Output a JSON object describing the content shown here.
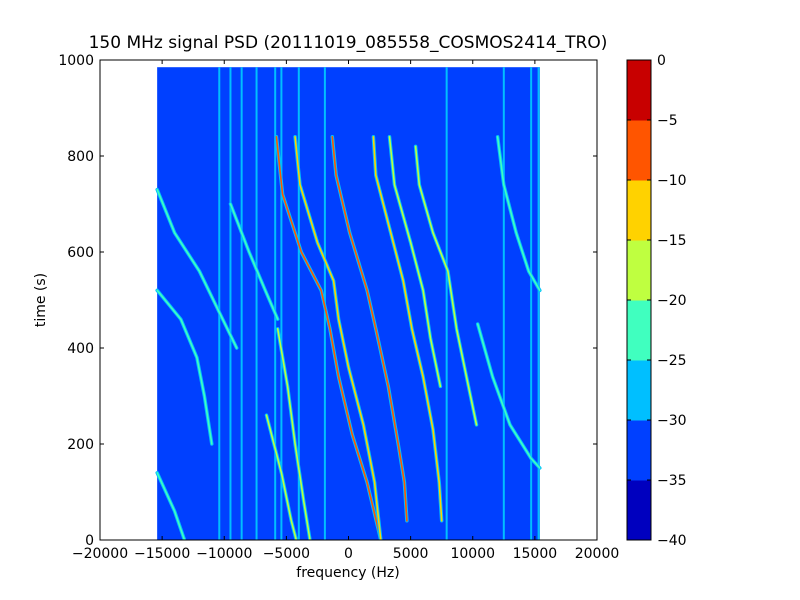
{
  "chart_data": {
    "type": "heatmap",
    "title": "150 MHz signal PSD (20111019_085558_COSMOS2414_TRO)",
    "xlabel": "frequency (Hz)",
    "ylabel": "time (s)",
    "xlim": [
      -20000,
      20000
    ],
    "ylim": [
      0,
      1000
    ],
    "x_ticks": [
      -20000,
      -15000,
      -10000,
      -5000,
      0,
      5000,
      10000,
      15000,
      20000
    ],
    "x_tick_labels": [
      "−20000",
      "−15000",
      "−10000",
      "−5000",
      "0",
      "5000",
      "10000",
      "15000",
      "20000"
    ],
    "y_ticks": [
      0,
      200,
      400,
      600,
      800,
      1000
    ],
    "y_tick_labels": [
      "0",
      "200",
      "400",
      "600",
      "800",
      "1000"
    ],
    "data_extent": {
      "x": [
        -15400,
        15400
      ],
      "y": [
        0,
        985
      ]
    },
    "background_level": -32.5,
    "colorbar": {
      "levels": [
        -40,
        -35,
        -30,
        -25,
        -20,
        -15,
        -10,
        -5,
        0
      ],
      "tick_labels": [
        "−40",
        "−35",
        "−30",
        "−25",
        "−20",
        "−15",
        "−10",
        "−5",
        "0"
      ],
      "colors": [
        "#0000bf",
        "#0040ff",
        "#00bfff",
        "#40ffbf",
        "#bfff40",
        "#ffd200",
        "#ff5500",
        "#c80000"
      ]
    },
    "vertical_lines": [
      {
        "x": -10400,
        "level": -27
      },
      {
        "x": -9500,
        "level": -28
      },
      {
        "x": -8600,
        "level": -28
      },
      {
        "x": -7400,
        "level": -29
      },
      {
        "x": -5900,
        "level": -27
      },
      {
        "x": -5400,
        "level": -28
      },
      {
        "x": -4000,
        "level": -29
      },
      {
        "x": -1900,
        "level": -26
      },
      {
        "x": 7900,
        "level": -28
      },
      {
        "x": 12500,
        "level": -30
      },
      {
        "x": 14700,
        "level": -28
      },
      {
        "x": 15300,
        "level": -27
      }
    ],
    "traces": [
      {
        "name": "",
        "level": -10,
        "points": [
          [
            -5800,
            840
          ],
          [
            -5300,
            720
          ],
          [
            -3800,
            600
          ],
          [
            -2200,
            520
          ],
          [
            -1500,
            440
          ],
          [
            -800,
            340
          ],
          [
            300,
            220
          ],
          [
            1500,
            120
          ],
          [
            2600,
            0
          ]
        ]
      },
      {
        "name": "",
        "level": -8,
        "points": [
          [
            -1300,
            840
          ],
          [
            -1000,
            760
          ],
          [
            100,
            640
          ],
          [
            1500,
            520
          ],
          [
            2200,
            440
          ],
          [
            3200,
            320
          ],
          [
            4000,
            200
          ],
          [
            4500,
            120
          ],
          [
            4700,
            40
          ]
        ]
      },
      {
        "name": "",
        "level": -15,
        "points": [
          [
            -4300,
            840
          ],
          [
            -3900,
            740
          ],
          [
            -2500,
            620
          ],
          [
            -1200,
            540
          ],
          [
            -800,
            460
          ],
          [
            0,
            360
          ],
          [
            1200,
            240
          ],
          [
            2100,
            120
          ],
          [
            2600,
            0
          ]
        ]
      },
      {
        "name": "",
        "level": -15,
        "points": [
          [
            2000,
            840
          ],
          [
            2200,
            760
          ],
          [
            3300,
            650
          ],
          [
            4400,
            540
          ],
          [
            5100,
            440
          ],
          [
            6000,
            340
          ],
          [
            6800,
            230
          ],
          [
            7300,
            120
          ],
          [
            7500,
            40
          ]
        ]
      },
      {
        "name": "",
        "level": -18,
        "points": [
          [
            3300,
            840
          ],
          [
            3700,
            740
          ],
          [
            5000,
            620
          ],
          [
            6000,
            520
          ],
          [
            6600,
            420
          ],
          [
            7400,
            320
          ]
        ]
      },
      {
        "name": "",
        "level": -17,
        "points": [
          [
            5400,
            820
          ],
          [
            5700,
            740
          ],
          [
            6800,
            640
          ],
          [
            8000,
            560
          ],
          [
            8700,
            440
          ],
          [
            9500,
            340
          ],
          [
            10300,
            240
          ]
        ]
      },
      {
        "name": "",
        "level": -20,
        "points": [
          [
            -5700,
            440
          ],
          [
            -4900,
            320
          ],
          [
            -4300,
            200
          ],
          [
            -3600,
            80
          ],
          [
            -3100,
            0
          ]
        ]
      },
      {
        "name": "",
        "level": -20,
        "points": [
          [
            -6600,
            260
          ],
          [
            -5400,
            140
          ],
          [
            -4600,
            40
          ],
          [
            -4200,
            0
          ]
        ]
      },
      {
        "name": "",
        "level": -22,
        "points": [
          [
            -15400,
            730
          ],
          [
            -14000,
            640
          ],
          [
            -12000,
            560
          ],
          [
            -10500,
            480
          ],
          [
            -9000,
            400
          ]
        ]
      },
      {
        "name": "",
        "level": -22,
        "points": [
          [
            -15400,
            520
          ],
          [
            -13500,
            460
          ],
          [
            -12200,
            380
          ],
          [
            -11600,
            300
          ],
          [
            -11000,
            200
          ]
        ]
      },
      {
        "name": "",
        "level": -22,
        "points": [
          [
            -15400,
            140
          ],
          [
            -14000,
            60
          ],
          [
            -13200,
            0
          ]
        ]
      },
      {
        "name": "",
        "level": -22,
        "points": [
          [
            12000,
            840
          ],
          [
            12500,
            740
          ],
          [
            13500,
            640
          ],
          [
            14500,
            560
          ],
          [
            15400,
            520
          ]
        ]
      },
      {
        "name": "",
        "level": -24,
        "points": [
          [
            -9500,
            700
          ],
          [
            -8000,
            600
          ],
          [
            -6700,
            520
          ],
          [
            -5700,
            460
          ]
        ]
      },
      {
        "name": "",
        "level": -24,
        "points": [
          [
            10400,
            450
          ],
          [
            11600,
            340
          ],
          [
            13000,
            240
          ],
          [
            14700,
            170
          ],
          [
            15400,
            150
          ]
        ]
      }
    ]
  }
}
